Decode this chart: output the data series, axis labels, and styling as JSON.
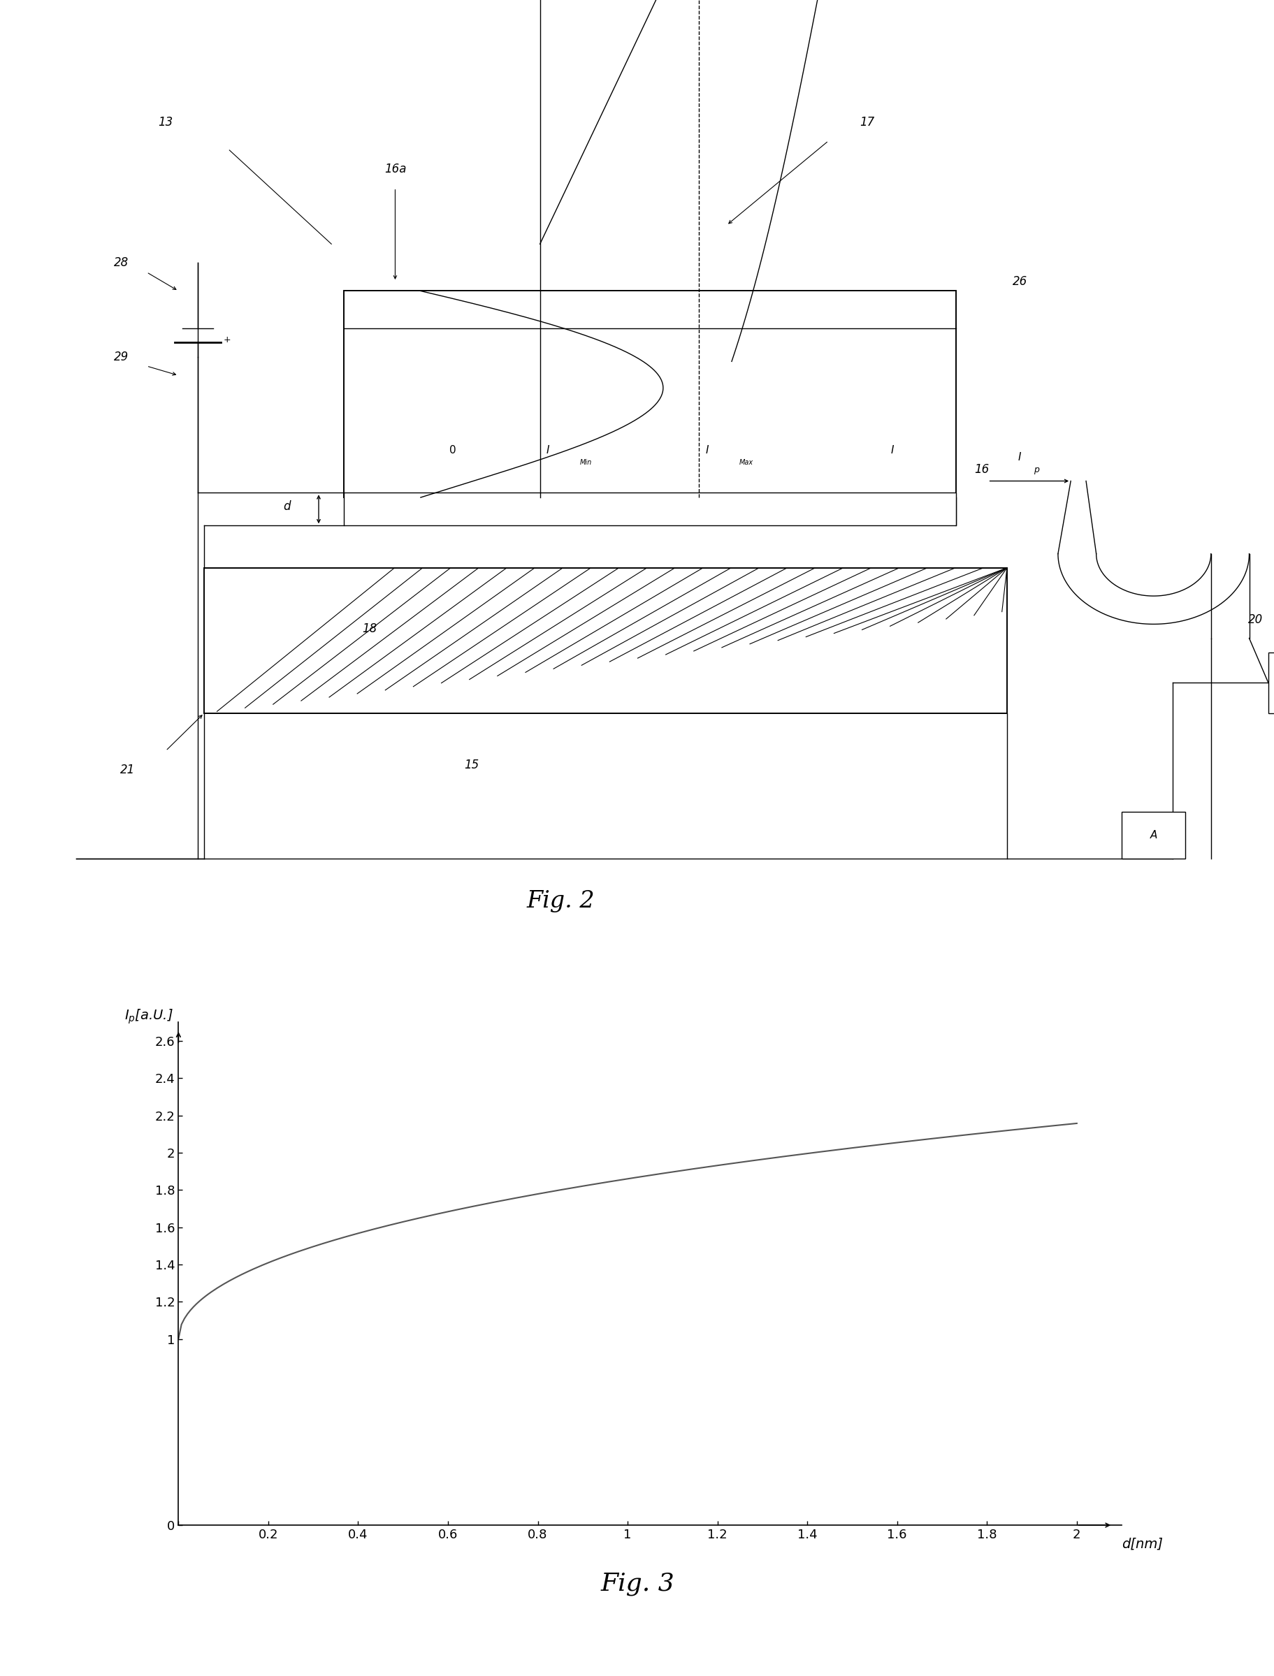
{
  "fig2_title": "Fig. 2",
  "fig3_title": "Fig. 3",
  "ylabel": "I_p[a.U.]",
  "xlabel": "d[nm]",
  "yticks": [
    0,
    1,
    1.2,
    1.4,
    1.6,
    1.8,
    2,
    2.2,
    2.4,
    2.6
  ],
  "xticks": [
    0,
    0.2,
    0.4,
    0.6,
    0.8,
    1,
    1.2,
    1.4,
    1.6,
    1.8,
    2
  ],
  "ylim": [
    0,
    2.7
  ],
  "xlim": [
    0,
    2.1
  ],
  "curve_color": "#555555",
  "line_color": "#000000",
  "bg_color": "#ffffff"
}
